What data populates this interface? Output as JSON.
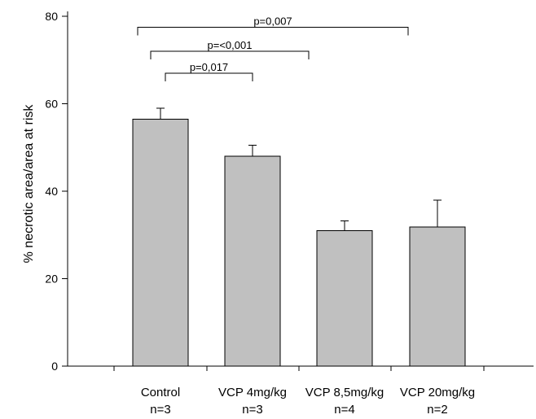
{
  "chart_data": {
    "type": "bar",
    "categories": [
      "Control",
      "VCP 4mg/kg",
      "VCP 8,5mg/kg",
      "VCP 20mg/kg"
    ],
    "sample_sizes": [
      "n=3",
      "n=3",
      "n=4",
      "n=2"
    ],
    "values": [
      56.5,
      48.0,
      31.0,
      31.8
    ],
    "error_upper": [
      2.5,
      2.5,
      2.2,
      6.2
    ],
    "ylabel": "% necrotic area/area at risk",
    "xlabel": "",
    "ylim": [
      0,
      80
    ],
    "yticks": [
      0,
      20,
      40,
      60,
      80
    ],
    "grid": false,
    "bar_color": "#c0c0c0",
    "significance": [
      {
        "from": 0,
        "to": 1,
        "y": 67,
        "label": "p=0,017"
      },
      {
        "from": 0,
        "to": 2,
        "y": 72,
        "label": "p=<0,001"
      },
      {
        "from": 0,
        "to": 3,
        "y": 77.5,
        "label": "p=0,007"
      }
    ]
  }
}
